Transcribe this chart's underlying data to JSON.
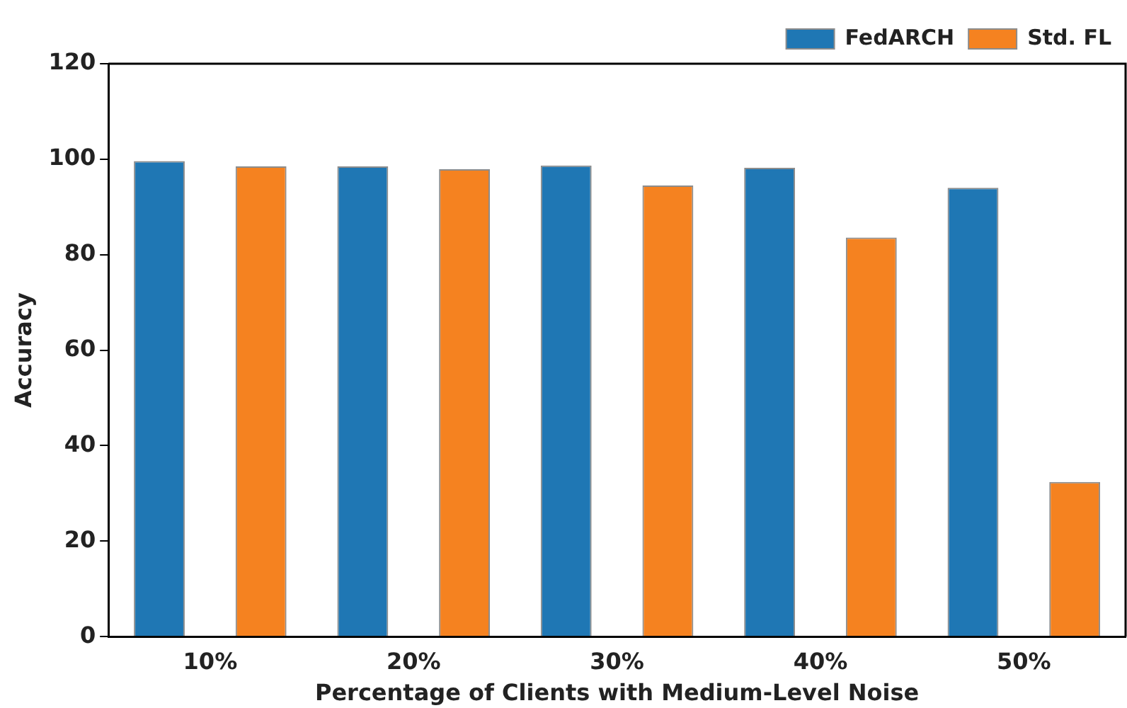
{
  "chart_data": {
    "type": "bar",
    "xlabel": "Percentage of Clients with Medium-Level Noise",
    "ylabel": "Accuracy",
    "categories": [
      "10%",
      "20%",
      "30%",
      "40%",
      "50%"
    ],
    "series": [
      {
        "name": "FedARCH",
        "color": "#1f77b4",
        "values": [
          99.6,
          98.5,
          98.7,
          98.2,
          94.0
        ]
      },
      {
        "name": "Std. FL",
        "color": "#f58220",
        "values": [
          98.5,
          97.9,
          94.5,
          83.6,
          32.4
        ]
      }
    ],
    "ylim": [
      0,
      120
    ],
    "yticks": [
      0,
      20,
      40,
      60,
      80,
      100,
      120
    ],
    "grid": false,
    "legend": "top right"
  }
}
